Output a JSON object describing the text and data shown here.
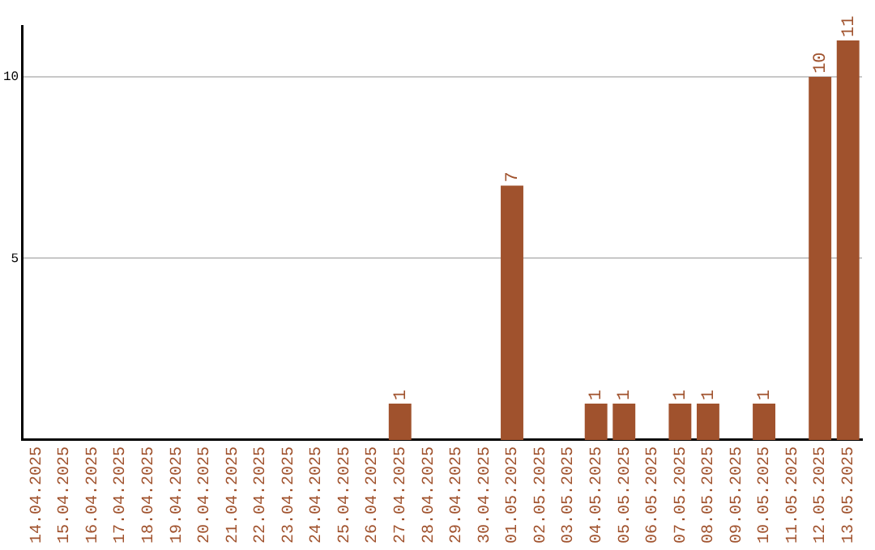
{
  "chart_data": {
    "type": "bar",
    "categories": [
      "14.04.2025",
      "15.04.2025",
      "16.04.2025",
      "17.04.2025",
      "18.04.2025",
      "19.04.2025",
      "20.04.2025",
      "21.04.2025",
      "22.04.2025",
      "23.04.2025",
      "24.04.2025",
      "25.04.2025",
      "26.04.2025",
      "27.04.2025",
      "28.04.2025",
      "29.04.2025",
      "30.04.2025",
      "01.05.2025",
      "02.05.2025",
      "03.05.2025",
      "04.05.2025",
      "05.05.2025",
      "06.05.2025",
      "07.05.2025",
      "08.05.2025",
      "09.05.2025",
      "10.05.2025",
      "11.05.2025",
      "12.05.2025",
      "13.05.2025"
    ],
    "values": [
      0,
      0,
      0,
      0,
      0,
      0,
      0,
      0,
      0,
      0,
      0,
      0,
      0,
      1,
      0,
      0,
      0,
      7,
      0,
      0,
      1,
      1,
      0,
      1,
      1,
      0,
      1,
      0,
      10,
      11
    ],
    "value_labels": [
      null,
      null,
      null,
      null,
      null,
      null,
      null,
      null,
      null,
      null,
      null,
      null,
      null,
      "1",
      null,
      null,
      null,
      "7",
      null,
      null,
      "1",
      "1",
      null,
      "1",
      "1",
      null,
      "1",
      null,
      "10",
      "11"
    ],
    "color": "#a0522d",
    "ylim": [
      0,
      11.4
    ],
    "yticks": [
      5,
      10
    ],
    "grid": "y",
    "legend": false
  }
}
